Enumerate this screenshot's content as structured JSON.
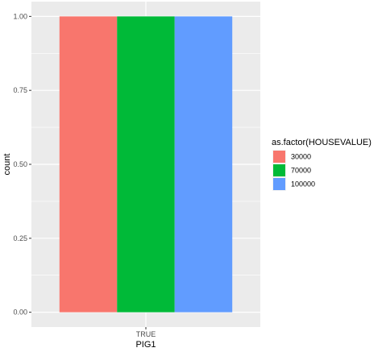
{
  "chart_data": {
    "type": "bar",
    "position": "dodge",
    "categories": [
      "TRUE"
    ],
    "series": [
      {
        "name": "30000",
        "values": [
          1.0
        ],
        "color": "#F8766D"
      },
      {
        "name": "70000",
        "values": [
          1.0
        ],
        "color": "#00BA38"
      },
      {
        "name": "100000",
        "values": [
          1.0
        ],
        "color": "#619CFF"
      }
    ],
    "xlabel": "PIG1",
    "ylabel": "count",
    "ylim": [
      -0.05,
      1.05
    ],
    "yticks": [
      "0.00",
      "0.25",
      "0.50",
      "0.75",
      "1.00"
    ],
    "ytick_values": [
      0,
      0.25,
      0.5,
      0.75,
      1.0
    ],
    "grid": true,
    "panel_background": "#EBEBEB",
    "legend": {
      "title": "as.factor(HOUSEVALUE)",
      "placement": "right"
    }
  }
}
